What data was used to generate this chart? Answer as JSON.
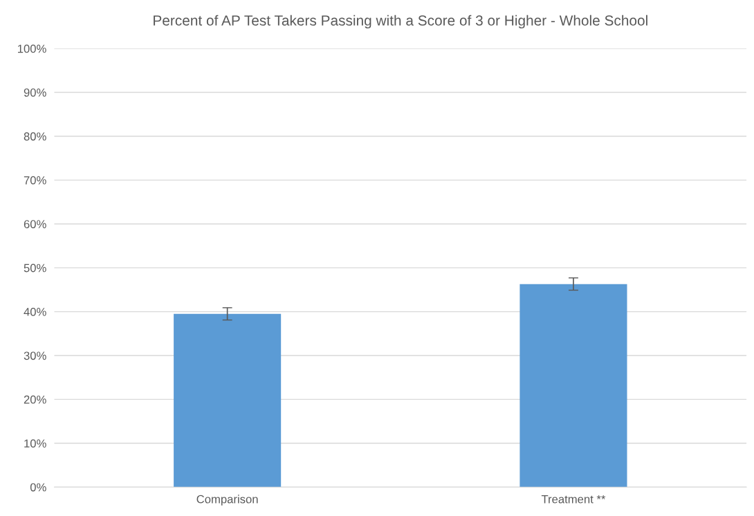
{
  "chart_data": {
    "type": "bar",
    "title": "Percent of AP Test Takers Passing with a Score of 3 or Higher - Whole School",
    "categories": [
      "Comparison",
      "Treatment **"
    ],
    "values": [
      39.5,
      46.3
    ],
    "errors": [
      1.4,
      1.4
    ],
    "color": "#5b9bd5",
    "ylim": [
      0,
      100
    ],
    "yticks": [
      {
        "value": 0,
        "label": "0%"
      },
      {
        "value": 10,
        "label": "10%"
      },
      {
        "value": 20,
        "label": "20%"
      },
      {
        "value": 30,
        "label": "30%"
      },
      {
        "value": 40,
        "label": "40%"
      },
      {
        "value": 50,
        "label": "50%"
      },
      {
        "value": 60,
        "label": "60%"
      },
      {
        "value": 70,
        "label": "70%"
      },
      {
        "value": 80,
        "label": "80%"
      },
      {
        "value": 90,
        "label": "90%"
      },
      {
        "value": 100,
        "label": "100%"
      }
    ],
    "grid": "y"
  }
}
